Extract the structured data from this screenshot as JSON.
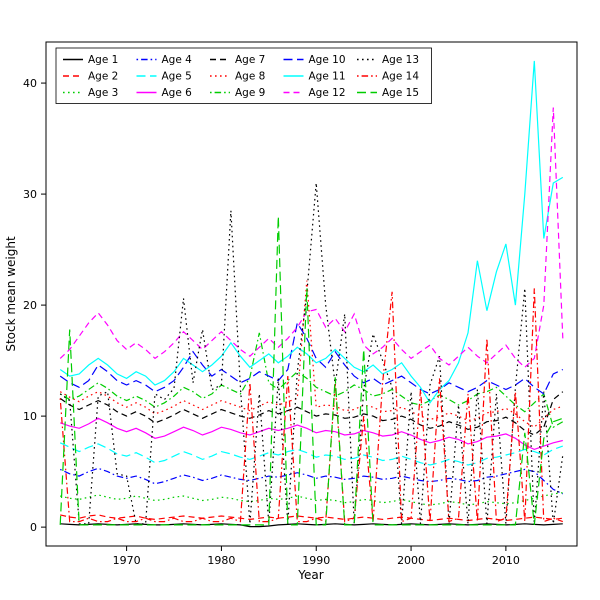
{
  "chart_data": {
    "type": "line",
    "title": "",
    "xlabel": "Year",
    "ylabel": "Stock mean weight",
    "xlim": [
      1961.5,
      2017.5
    ],
    "ylim": [
      -1.7,
      43.7
    ],
    "x_ticks": [
      1970,
      1980,
      1990,
      2000,
      2010
    ],
    "y_ticks": [
      0,
      10,
      20,
      30,
      40
    ],
    "grid": false,
    "legend_position": "top-left-inside",
    "legend_columns": 5,
    "palette": {
      "black": "#000000",
      "red": "#FF0000",
      "green": "#00CD00",
      "blue": "#0000FF",
      "cyan": "#00FFFF",
      "magenta": "#FF00FF"
    },
    "x": [
      1963,
      1964,
      1965,
      1966,
      1967,
      1968,
      1969,
      1970,
      1971,
      1972,
      1973,
      1974,
      1975,
      1976,
      1977,
      1978,
      1979,
      1980,
      1981,
      1982,
      1983,
      1984,
      1985,
      1986,
      1987,
      1988,
      1989,
      1990,
      1991,
      1992,
      1993,
      1994,
      1995,
      1996,
      1997,
      1998,
      1999,
      2000,
      2001,
      2002,
      2003,
      2004,
      2005,
      2006,
      2007,
      2008,
      2009,
      2010,
      2011,
      2012,
      2013,
      2014,
      2015,
      2016
    ],
    "series": [
      {
        "name": "Age 1",
        "color": "#000000",
        "linetype": "solid",
        "values": [
          0.3,
          0.25,
          0.2,
          0.25,
          0.3,
          0.25,
          0.2,
          0.25,
          0.3,
          0.25,
          0.2,
          0.2,
          0.25,
          0.3,
          0.25,
          0.2,
          0.25,
          0.3,
          0.25,
          0.2,
          0.05,
          0.05,
          0.1,
          0.2,
          0.25,
          0.3,
          0.25,
          0.2,
          0.25,
          0.3,
          0.25,
          0.2,
          0.25,
          0.3,
          0.25,
          0.2,
          0.25,
          0.3,
          0.25,
          0.2,
          0.25,
          0.3,
          0.25,
          0.2,
          0.25,
          0.3,
          0.25,
          0.2,
          0.25,
          0.3,
          0.25,
          0.2,
          0.25,
          0.3
        ]
      },
      {
        "name": "Age 2",
        "color": "#FF0000",
        "linetype": "dashed",
        "values": [
          1.1,
          0.9,
          0.8,
          1.0,
          1.1,
          0.9,
          0.8,
          0.9,
          1.0,
          0.8,
          0.7,
          0.8,
          0.9,
          1.0,
          0.9,
          0.8,
          0.9,
          1.0,
          0.9,
          0.8,
          0.7,
          0.8,
          0.9,
          0.8,
          0.9,
          1.0,
          0.9,
          0.8,
          0.9,
          0.8,
          0.7,
          0.8,
          0.9,
          0.8,
          0.7,
          0.8,
          0.9,
          0.8,
          0.7,
          0.6,
          0.7,
          0.8,
          0.7,
          0.6,
          0.7,
          0.8,
          0.7,
          0.6,
          0.7,
          0.8,
          0.9,
          0.8,
          0.7,
          0.8
        ]
      },
      {
        "name": "Age 3",
        "color": "#00CD00",
        "linetype": "dotted",
        "values": [
          2.8,
          2.6,
          2.5,
          2.7,
          2.9,
          2.7,
          2.5,
          2.6,
          2.8,
          2.6,
          2.4,
          2.5,
          2.7,
          2.8,
          2.6,
          2.4,
          2.5,
          2.7,
          2.6,
          2.4,
          2.3,
          2.4,
          2.6,
          2.5,
          2.6,
          2.8,
          2.6,
          2.4,
          2.5,
          2.4,
          2.2,
          2.3,
          2.5,
          2.4,
          2.2,
          2.3,
          2.5,
          2.3,
          2.1,
          2.0,
          2.1,
          2.3,
          2.2,
          2.0,
          2.1,
          2.3,
          2.2,
          2.1,
          2.2,
          2.4,
          2.6,
          2.8,
          3.0,
          3.1
        ]
      },
      {
        "name": "Age 4",
        "color": "#0000FF",
        "linetype": "dotdash",
        "values": [
          5.2,
          4.8,
          4.6,
          5.0,
          5.3,
          5.0,
          4.6,
          4.4,
          4.6,
          4.3,
          3.9,
          4.1,
          4.4,
          4.7,
          4.5,
          4.2,
          4.4,
          4.7,
          4.5,
          4.3,
          4.2,
          4.4,
          4.6,
          4.5,
          4.7,
          4.9,
          4.7,
          4.4,
          4.6,
          4.5,
          4.3,
          4.4,
          4.6,
          4.5,
          4.3,
          4.4,
          4.6,
          4.4,
          4.2,
          4.1,
          4.2,
          4.4,
          4.3,
          4.1,
          4.2,
          4.5,
          4.6,
          4.8,
          5.0,
          5.2,
          5.0,
          4.2,
          3.4,
          3.0
        ]
      },
      {
        "name": "Age 5",
        "color": "#00FFFF",
        "linetype": "longdash",
        "values": [
          7.6,
          7.2,
          6.8,
          7.2,
          7.5,
          7.1,
          6.6,
          6.4,
          6.7,
          6.3,
          5.8,
          6.0,
          6.4,
          6.8,
          6.5,
          6.1,
          6.4,
          6.8,
          6.6,
          6.3,
          6.1,
          6.4,
          6.7,
          6.5,
          6.8,
          7.0,
          6.7,
          6.3,
          6.5,
          6.4,
          6.1,
          6.2,
          6.5,
          6.3,
          6.0,
          6.1,
          6.4,
          6.1,
          5.8,
          5.6,
          5.8,
          6.1,
          5.9,
          5.6,
          5.8,
          6.2,
          6.3,
          6.5,
          6.7,
          7.0,
          6.8,
          6.5,
          7.0,
          7.3
        ]
      },
      {
        "name": "Age 6",
        "color": "#FF00FF",
        "linetype": "solid",
        "values": [
          9.4,
          9.1,
          8.9,
          9.3,
          9.8,
          9.4,
          8.9,
          8.6,
          8.9,
          8.5,
          8.0,
          8.2,
          8.6,
          9.0,
          8.7,
          8.3,
          8.6,
          9.0,
          8.8,
          8.5,
          8.3,
          8.6,
          8.9,
          8.7,
          8.9,
          9.2,
          8.9,
          8.5,
          8.7,
          8.6,
          8.3,
          8.4,
          8.7,
          8.5,
          8.2,
          8.3,
          8.6,
          8.3,
          7.9,
          7.6,
          7.8,
          8.1,
          7.9,
          7.5,
          7.7,
          8.1,
          8.2,
          8.4,
          8.0,
          7.4,
          7.0,
          7.3,
          7.6,
          7.8
        ]
      },
      {
        "name": "Age 7",
        "color": "#000000",
        "linetype": "dashed",
        "values": [
          11.6,
          11.0,
          10.6,
          11.0,
          11.4,
          11.0,
          10.4,
          10.0,
          10.4,
          10.0,
          9.4,
          9.7,
          10.1,
          10.6,
          10.2,
          9.8,
          10.2,
          10.6,
          10.3,
          10.0,
          9.8,
          10.1,
          10.5,
          10.2,
          10.5,
          10.8,
          10.4,
          10.0,
          10.2,
          10.1,
          9.8,
          9.9,
          10.2,
          10.0,
          9.6,
          9.7,
          10.0,
          9.7,
          9.2,
          8.9,
          9.1,
          9.5,
          9.2,
          8.8,
          9.0,
          9.5,
          9.6,
          9.9,
          9.4,
          8.7,
          8.3,
          9.0,
          11.5,
          12.2
        ]
      },
      {
        "name": "Age 8",
        "color": "#FF0000",
        "linetype": "dotted",
        "values": [
          12.2,
          11.7,
          11.3,
          11.8,
          12.2,
          11.8,
          11.2,
          10.8,
          11.2,
          10.8,
          10.2,
          10.5,
          10.9,
          11.4,
          11.0,
          10.6,
          11.0,
          11.4,
          11.1,
          10.8,
          10.5,
          10.9,
          11.3,
          11.0,
          11.3,
          11.6,
          22.2,
          10.8,
          11.0,
          10.9,
          10.5,
          10.6,
          11.0,
          10.8,
          10.4,
          10.5,
          10.8,
          10.4,
          10.0,
          9.7,
          9.9,
          10.3,
          10.0,
          9.6,
          9.8,
          10.3,
          10.4,
          10.7,
          10.2,
          9.5,
          9.0,
          9.8,
          10.6,
          10.9
        ]
      },
      {
        "name": "Age 9",
        "color": "#00CD00",
        "linetype": "dotdash",
        "values": [
          12.0,
          11.5,
          11.8,
          12.4,
          13.0,
          12.5,
          11.8,
          11.4,
          11.8,
          11.4,
          10.8,
          11.2,
          11.8,
          12.6,
          12.2,
          11.6,
          12.0,
          12.8,
          12.4,
          12.0,
          13.5,
          17.5,
          13.0,
          12.4,
          13.2,
          14.0,
          13.4,
          12.6,
          12.2,
          11.8,
          12.2,
          12.8,
          12.4,
          11.8,
          12.0,
          12.4,
          11.8,
          11.2,
          11.0,
          11.4,
          11.9,
          11.5,
          11.0,
          11.4,
          12.0,
          12.2,
          12.6,
          11.8,
          11.0,
          10.4,
          11.2,
          12.0,
          9.0,
          9.5
        ]
      },
      {
        "name": "Age 10",
        "color": "#0000FF",
        "linetype": "longdash",
        "values": [
          13.6,
          13.0,
          12.6,
          13.2,
          14.6,
          14.0,
          13.2,
          12.8,
          13.2,
          12.8,
          12.2,
          12.6,
          13.2,
          14.4,
          15.8,
          14.6,
          13.6,
          14.2,
          13.6,
          13.0,
          13.4,
          14.0,
          13.6,
          13.2,
          14.2,
          18.4,
          17.0,
          15.2,
          14.4,
          15.8,
          14.6,
          13.6,
          13.0,
          13.4,
          12.8,
          13.2,
          13.6,
          13.0,
          12.4,
          12.0,
          12.4,
          13.0,
          12.6,
          12.2,
          12.6,
          13.2,
          12.8,
          12.4,
          12.8,
          13.4,
          12.6,
          12.0,
          13.8,
          14.2
        ]
      },
      {
        "name": "Age 11",
        "color": "#00FFFF",
        "linetype": "solid",
        "values": [
          14.2,
          13.6,
          13.8,
          14.6,
          15.2,
          14.6,
          13.8,
          13.4,
          14.0,
          13.6,
          12.8,
          13.2,
          14.0,
          15.2,
          14.6,
          14.0,
          14.6,
          15.4,
          16.6,
          15.4,
          14.4,
          15.0,
          15.6,
          14.8,
          15.4,
          16.2,
          15.6,
          14.8,
          15.2,
          16.0,
          15.2,
          14.4,
          14.0,
          14.6,
          13.8,
          14.2,
          14.8,
          13.6,
          12.6,
          11.2,
          12.4,
          13.2,
          14.8,
          17.5,
          24.0,
          19.5,
          23.0,
          25.5,
          20.0,
          30.0,
          42.0,
          26.0,
          31.0,
          31.5
        ]
      },
      {
        "name": "Age 12",
        "color": "#FF00FF",
        "linetype": "dashed",
        "values": [
          15.2,
          16.0,
          17.2,
          18.4,
          19.3,
          18.2,
          16.8,
          16.0,
          16.6,
          16.0,
          15.2,
          15.8,
          16.6,
          17.6,
          16.8,
          16.0,
          16.8,
          17.6,
          16.8,
          16.0,
          15.4,
          16.2,
          17.0,
          16.2,
          17.0,
          18.0,
          19.4,
          19.6,
          18.0,
          18.8,
          17.6,
          19.2,
          16.4,
          15.6,
          16.2,
          17.0,
          16.0,
          15.2,
          15.8,
          16.4,
          15.2,
          14.6,
          15.4,
          16.2,
          15.4,
          14.8,
          15.6,
          16.4,
          15.2,
          14.4,
          15.2,
          20.0,
          37.8,
          17.0
        ]
      },
      {
        "name": "Age 13",
        "color": "#000000",
        "linetype": "dotted",
        "values": [
          12.0,
          11.4,
          0.3,
          0.3,
          11.8,
          12.2,
          4.8,
          4.6,
          0.3,
          0.3,
          12.0,
          11.5,
          12.5,
          20.6,
          13.0,
          17.8,
          12.4,
          12.8,
          28.5,
          12.6,
          0.3,
          12.0,
          0.3,
          13.4,
          0.3,
          14.0,
          21.0,
          31.0,
          20.0,
          12.8,
          19.2,
          0.3,
          12.4,
          17.4,
          15.0,
          12.6,
          0.3,
          12.2,
          0.3,
          12.8,
          15.4,
          0.3,
          11.0,
          0.3,
          12.4,
          0.3,
          12.0,
          0.3,
          12.6,
          21.5,
          0.3,
          12.2,
          0.3,
          6.5
        ]
      },
      {
        "name": "Age 14",
        "color": "#FF0000",
        "linetype": "dotdash",
        "values": [
          11.6,
          0.5,
          0.5,
          0.8,
          0.5,
          0.5,
          0.8,
          0.5,
          0.5,
          0.8,
          0.5,
          0.5,
          0.8,
          0.5,
          0.5,
          0.8,
          0.5,
          0.5,
          0.8,
          0.5,
          13.0,
          0.5,
          0.5,
          0.8,
          13.6,
          0.5,
          0.5,
          0.8,
          0.5,
          13.0,
          0.5,
          0.8,
          10.0,
          0.5,
          13.0,
          21.2,
          0.5,
          0.8,
          12.4,
          0.5,
          13.4,
          0.5,
          0.8,
          12.0,
          0.5,
          17.0,
          0.5,
          0.8,
          12.2,
          0.5,
          21.5,
          0.5,
          0.8,
          0.5
        ]
      },
      {
        "name": "Age 15",
        "color": "#00CD00",
        "linetype": "longdash",
        "values": [
          0.2,
          17.8,
          0.2,
          0.2,
          0.2,
          0.2,
          0.2,
          0.2,
          0.2,
          0.2,
          0.2,
          0.2,
          0.2,
          0.2,
          0.2,
          0.2,
          0.2,
          0.2,
          0.2,
          0.2,
          0.2,
          0.2,
          0.2,
          28.0,
          0.2,
          0.2,
          21.5,
          0.2,
          0.2,
          13.5,
          0.2,
          0.2,
          16.0,
          0.2,
          0.2,
          0.2,
          0.2,
          0.2,
          0.2,
          0.2,
          0.2,
          0.2,
          0.2,
          0.2,
          0.2,
          0.2,
          0.2,
          0.2,
          0.2,
          8.5,
          0.2,
          8.0,
          9.5,
          9.8
        ]
      }
    ]
  }
}
